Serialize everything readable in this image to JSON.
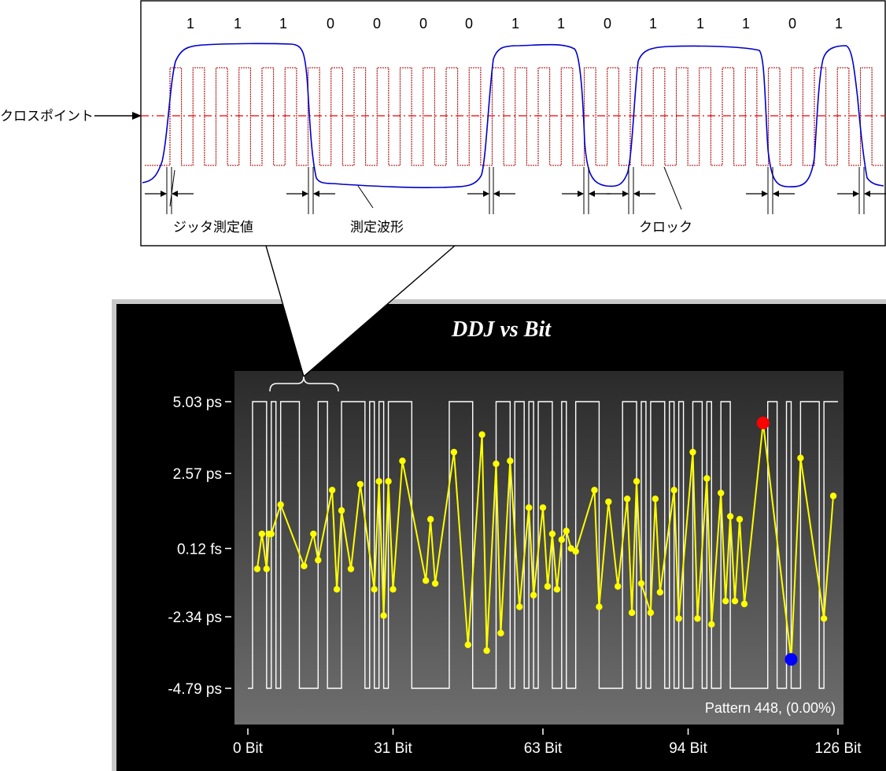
{
  "callout": {
    "bits": [
      "1",
      "1",
      "1",
      "0",
      "0",
      "0",
      "0",
      "1",
      "1",
      "0",
      "1",
      "1",
      "1",
      "0",
      "1"
    ],
    "labels": {
      "cross_point": "クロスポイント",
      "jitter_value": "ジッタ測定値",
      "measured_waveform": "測定波形",
      "clock": "クロック"
    }
  },
  "colors": {
    "clock": "#aa0000",
    "crosspoint_line": "#ee0000",
    "waveform": "#0000cc",
    "chart_background": "#000000",
    "plot_gradient_top": "#2a2a2a",
    "plot_gradient_bottom": "#6e6e6e",
    "ddj_series": "#ffff00",
    "pattern_series": "#ffffff",
    "max_marker": "#ff0000",
    "min_marker": "#0000ff"
  },
  "chart_data": {
    "type": "line",
    "title": "DDJ vs Bit",
    "annotation": "Pattern 448, (0.00%)",
    "y_tick_labels": [
      "5.03 ps",
      "2.57 ps",
      "0.12 fs",
      "-2.34 ps",
      "-4.79 ps"
    ],
    "y_ticks_ps": [
      5.03,
      2.57,
      0.00012,
      -2.34,
      -4.79
    ],
    "x_tick_labels": [
      "0 Bit",
      "31 Bit",
      "63 Bit",
      "94 Bit",
      "126 Bit"
    ],
    "x_ticks": [
      0,
      31,
      63,
      94,
      126
    ],
    "xlim": [
      0,
      126
    ],
    "ylim_ps": [
      -4.79,
      5.03
    ],
    "grid": false,
    "legend": "none",
    "series": [
      {
        "type": "line",
        "unit": "ps",
        "points": [
          [
            2,
            -0.7
          ],
          [
            3,
            0.5
          ],
          [
            4,
            -0.7
          ],
          [
            4.5,
            0.5
          ],
          [
            5,
            0.5
          ],
          [
            7,
            1.5
          ],
          [
            12,
            -0.6
          ],
          [
            14,
            0.5
          ],
          [
            15,
            -0.4
          ],
          [
            18,
            2.0
          ],
          [
            19,
            -1.4
          ],
          [
            20,
            1.3
          ],
          [
            22,
            -0.7
          ],
          [
            24,
            2.2
          ],
          [
            27,
            -1.4
          ],
          [
            28,
            2.3
          ],
          [
            29,
            -2.3
          ],
          [
            30,
            2.3
          ],
          [
            31,
            -1.4
          ],
          [
            33,
            3.0
          ],
          [
            38,
            -1.1
          ],
          [
            39,
            1.0
          ],
          [
            40,
            -1.2
          ],
          [
            44,
            3.3
          ],
          [
            47,
            -3.3
          ],
          [
            50,
            3.9
          ],
          [
            51,
            -3.5
          ],
          [
            53,
            2.9
          ],
          [
            54,
            -2.9
          ],
          [
            56,
            3.0
          ],
          [
            58,
            -2.0
          ],
          [
            60,
            1.4
          ],
          [
            61,
            -1.6
          ],
          [
            63,
            1.4
          ],
          [
            64,
            -1.3
          ],
          [
            65,
            0.5
          ],
          [
            66,
            -1.4
          ],
          [
            67,
            0.3
          ],
          [
            68,
            0.6
          ],
          [
            69,
            0.0
          ],
          [
            70,
            -0.1
          ],
          [
            74,
            2.0
          ],
          [
            75,
            -2.0
          ],
          [
            77,
            1.6
          ],
          [
            79,
            -1.3
          ],
          [
            81,
            1.7
          ],
          [
            82,
            -2.2
          ],
          [
            83,
            2.3
          ],
          [
            84,
            -1.2
          ],
          [
            86,
            -2.2
          ],
          [
            87,
            1.7
          ],
          [
            88,
            -1.5
          ],
          [
            91,
            2.0
          ],
          [
            92,
            -2.4
          ],
          [
            95,
            3.3
          ],
          [
            96,
            -2.4
          ],
          [
            98,
            2.4
          ],
          [
            99,
            -2.6
          ],
          [
            101,
            1.9
          ],
          [
            102,
            -1.8
          ],
          [
            103,
            1.1
          ],
          [
            104,
            -1.8
          ],
          [
            105,
            1.0
          ],
          [
            106,
            -1.9
          ],
          [
            110,
            4.3
          ],
          [
            116,
            -3.8
          ],
          [
            118,
            3.1
          ],
          [
            123,
            -2.4
          ],
          [
            125,
            1.8
          ]
        ]
      },
      {
        "type": "step",
        "range_ps": [
          -4.79,
          5.03
        ],
        "levels": [
          0,
          1,
          1,
          1,
          0,
          1,
          0,
          1,
          1,
          1,
          1,
          0,
          0,
          0,
          0,
          1,
          1,
          0,
          0,
          0,
          1,
          1,
          1,
          1,
          1,
          0,
          1,
          0,
          1,
          0,
          1,
          1,
          1,
          1,
          1,
          0,
          0,
          0,
          0,
          0,
          0,
          0,
          0,
          1,
          1,
          1,
          1,
          1,
          0,
          0,
          0,
          0,
          0,
          1,
          1,
          1,
          0,
          1,
          1,
          0,
          1,
          0,
          1,
          1,
          1,
          0,
          0,
          1,
          0,
          0,
          1,
          1,
          1,
          1,
          1,
          0,
          0,
          0,
          0,
          0,
          1,
          1,
          1,
          0,
          1,
          0,
          1,
          1,
          1,
          0,
          1,
          0,
          1,
          0,
          0,
          1,
          1,
          0,
          1,
          0,
          0,
          1,
          1,
          0,
          0,
          0,
          0,
          0,
          0,
          0,
          0,
          1,
          1,
          0,
          0,
          1,
          0,
          0,
          1,
          1,
          1,
          1,
          0,
          1,
          1,
          1
        ]
      },
      {
        "type": "marker",
        "name": "max",
        "x": 110,
        "y": 4.3
      },
      {
        "type": "marker",
        "name": "min",
        "x": 116,
        "y": -3.8
      }
    ]
  }
}
